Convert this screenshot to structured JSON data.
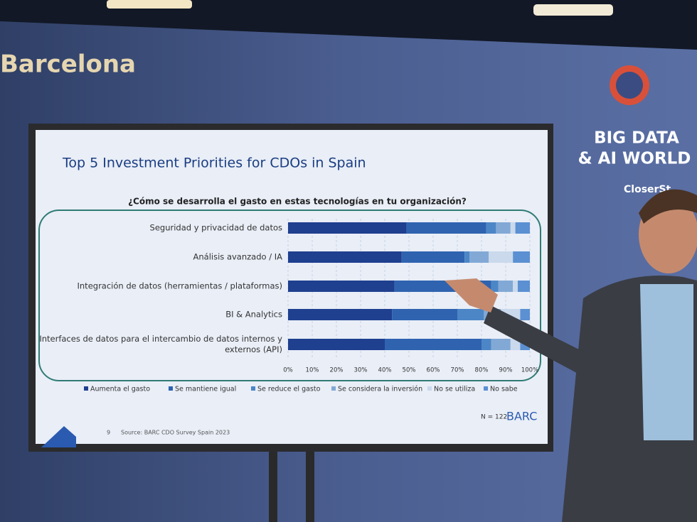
{
  "scene": {
    "venue": "Barcelona",
    "event_line1": "BIG DATA",
    "event_line2": "& AI WORLD",
    "sponsor": "CloserSt"
  },
  "slide": {
    "page": "9",
    "source": "Source: BARC CDO Survey Spain 2023",
    "sample": "N = 122",
    "brand": "BARC"
  },
  "chart_data": {
    "type": "stacked-barh",
    "title": "Top 5 Investment Priorities for CDOs in Spain",
    "subtitle": "¿Cómo se desarrolla el gasto en estas tecnologías en tu organización?",
    "categories": [
      "Seguridad y privacidad de datos",
      "Análisis avanzado / IA",
      "Integración de datos (herramientas / plataformas)",
      "BI & Analytics",
      "Interfaces de datos para el intercambio de datos internos y externos (API)"
    ],
    "series": [
      {
        "name": "Aumenta el gasto",
        "color": "#1f3f8f",
        "values": [
          49,
          47,
          44,
          43,
          40
        ]
      },
      {
        "name": "Se mantiene igual",
        "color": "#2f63b0",
        "values": [
          33,
          26,
          40,
          27,
          40
        ]
      },
      {
        "name": "Se reduce el gasto",
        "color": "#4c86c6",
        "values": [
          4,
          2,
          3,
          11,
          4
        ]
      },
      {
        "name": "Se considera la inversión",
        "color": "#82a9d6",
        "values": [
          6,
          8,
          6,
          7,
          8
        ]
      },
      {
        "name": "No se utiliza",
        "color": "#cad9ec",
        "values": [
          2,
          10,
          2,
          8,
          4
        ]
      },
      {
        "name": "No sabe",
        "color": "#5b90d2",
        "values": [
          6,
          7,
          5,
          4,
          4
        ]
      }
    ],
    "xlim": [
      0,
      100
    ],
    "xticks": [
      {
        "value": 0,
        "label": "0%"
      },
      {
        "value": 10,
        "label": "10%"
      },
      {
        "value": 20,
        "label": "20%"
      },
      {
        "value": 30,
        "label": "30%"
      },
      {
        "value": 40,
        "label": "40%"
      },
      {
        "value": 50,
        "label": "50%"
      },
      {
        "value": 60,
        "label": "60%"
      },
      {
        "value": 70,
        "label": "70%"
      },
      {
        "value": 80,
        "label": "80%"
      },
      {
        "value": 90,
        "label": "90%"
      },
      {
        "value": 100,
        "label": "100%"
      }
    ],
    "grid": true,
    "legend": "bottom"
  }
}
